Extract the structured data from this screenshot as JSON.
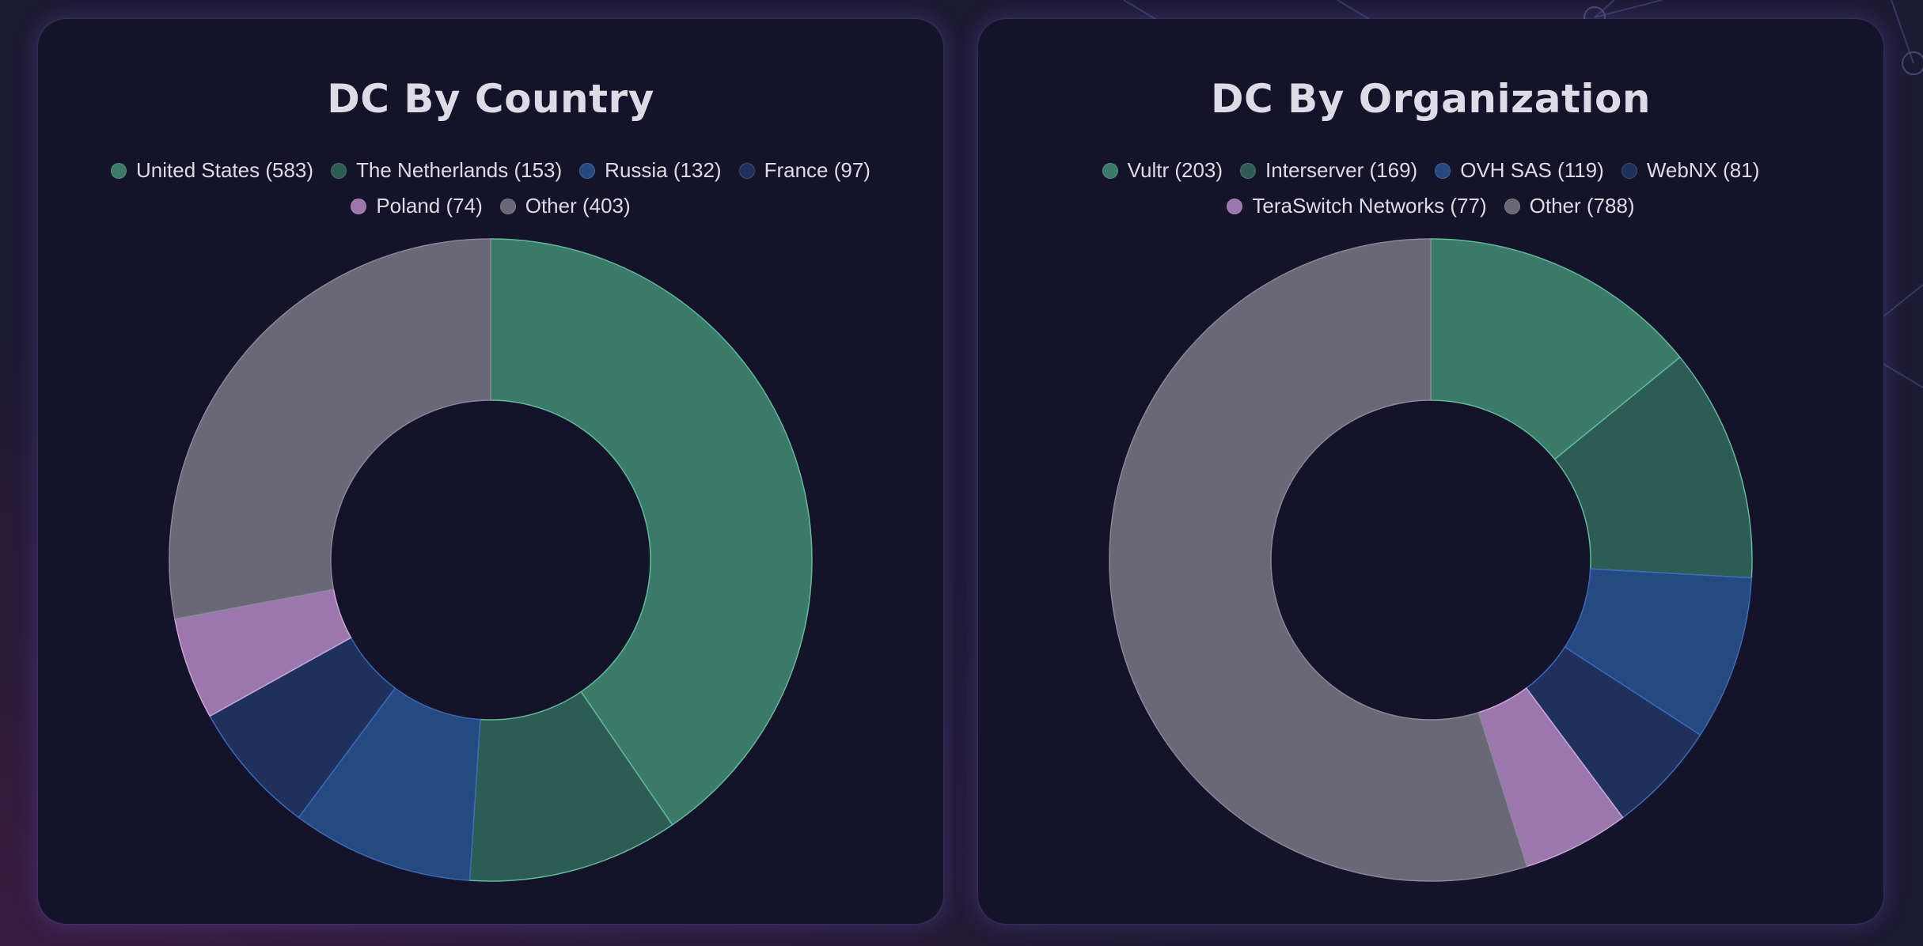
{
  "chart_data": [
    {
      "type": "pie",
      "variant": "donut",
      "title": "DC By Country",
      "legend_position": "top",
      "slices": [
        {
          "label": "United States",
          "value": 583,
          "legend_text": "United States (583)",
          "color": "#3b7a69"
        },
        {
          "label": "The Netherlands",
          "value": 153,
          "legend_text": "The Netherlands (153)",
          "color": "#2d5c54"
        },
        {
          "label": "Russia",
          "value": 132,
          "legend_text": "Russia (132)",
          "color": "#254980"
        },
        {
          "label": "France",
          "value": 97,
          "legend_text": "France (97)",
          "color": "#1f305c"
        },
        {
          "label": "Poland",
          "value": 74,
          "legend_text": "Poland (74)",
          "color": "#9c77ad"
        },
        {
          "label": "Other",
          "value": 403,
          "legend_text": "Other (403)",
          "color": "#6a6776"
        }
      ]
    },
    {
      "type": "pie",
      "variant": "donut",
      "title": "DC By Organization",
      "legend_position": "top",
      "slices": [
        {
          "label": "Vultr",
          "value": 203,
          "legend_text": "Vultr (203)",
          "color": "#3b7a69"
        },
        {
          "label": "Interserver",
          "value": 169,
          "legend_text": "Interserver (169)",
          "color": "#2d5c54"
        },
        {
          "label": "OVH SAS",
          "value": 119,
          "legend_text": "OVH SAS (119)",
          "color": "#254980"
        },
        {
          "label": "WebNX",
          "value": 81,
          "legend_text": "WebNX (81)",
          "color": "#1f305c"
        },
        {
          "label": "TeraSwitch Networks",
          "value": 77,
          "legend_text": "TeraSwitch Networks (77)",
          "color": "#9c77ad"
        },
        {
          "label": "Other",
          "value": 788,
          "legend_text": "Other (788)",
          "color": "#6a6776"
        }
      ]
    }
  ],
  "colors": {
    "page_background": "#1d1a33",
    "card_background": "#15132a",
    "title_text": "#dcdbe6",
    "legend_text": "#dcdbe6"
  }
}
